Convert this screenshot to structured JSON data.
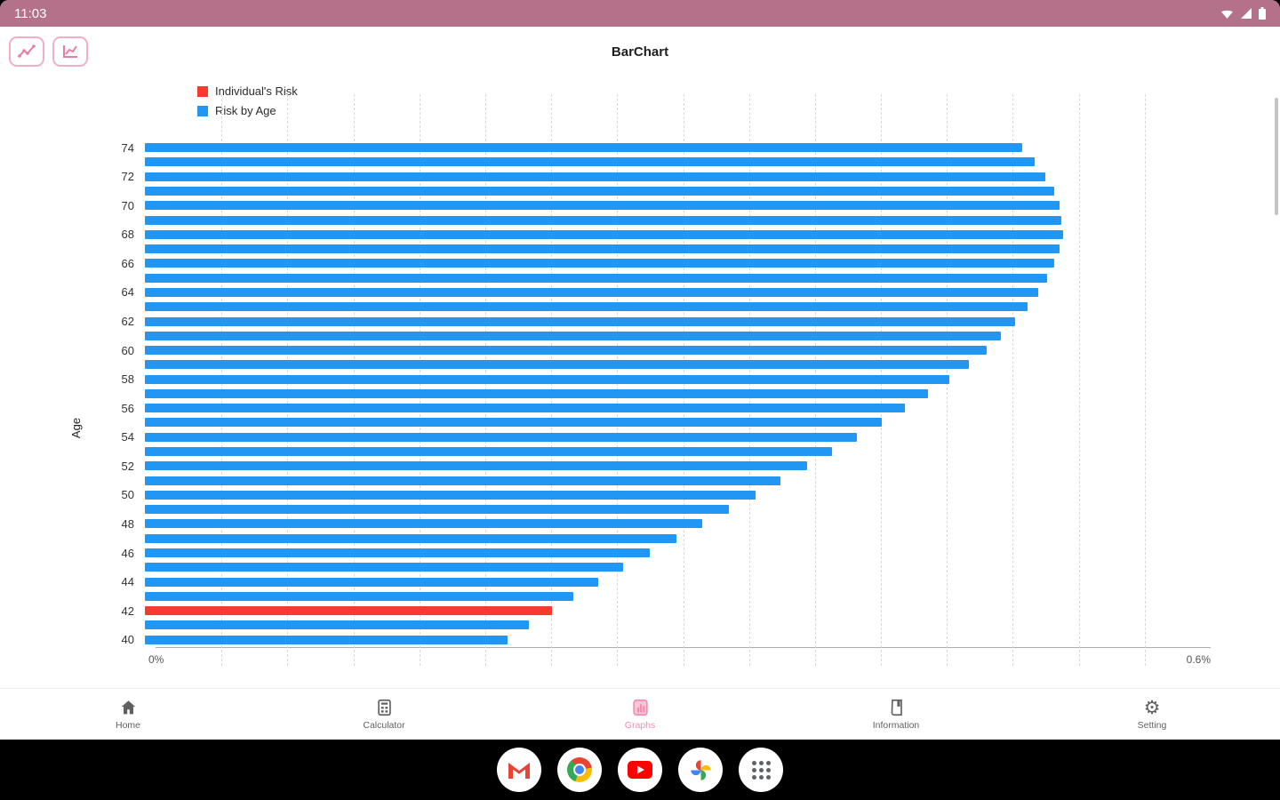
{
  "status_bar": {
    "time": "11:03"
  },
  "app_bar": {
    "title": "BarChart",
    "toolbar_icons": [
      "scatter-chart-icon",
      "line-chart-icon"
    ]
  },
  "chart_data": {
    "type": "bar",
    "orientation": "horizontal",
    "ylabel": "Age",
    "x_axis": {
      "labels": [
        "0%",
        "0.6%"
      ],
      "min": 0,
      "max": 0.6,
      "grid_divisions": 16,
      "grid": true
    },
    "legend": [
      {
        "label": "Individual's Risk",
        "color": "#f43b2d",
        "series": "individual"
      },
      {
        "label": "Risk by Age",
        "color": "#2196f3",
        "series": "risk_by_age"
      }
    ],
    "bars": [
      {
        "age": 74,
        "value": 0.494,
        "series": "risk_by_age"
      },
      {
        "age": 73,
        "value": 0.501,
        "series": "risk_by_age"
      },
      {
        "age": 72,
        "value": 0.507,
        "series": "risk_by_age"
      },
      {
        "age": 71,
        "value": 0.512,
        "series": "risk_by_age"
      },
      {
        "age": 70,
        "value": 0.515,
        "series": "risk_by_age"
      },
      {
        "age": 69,
        "value": 0.516,
        "series": "risk_by_age"
      },
      {
        "age": 68,
        "value": 0.517,
        "series": "risk_by_age"
      },
      {
        "age": 67,
        "value": 0.515,
        "series": "risk_by_age"
      },
      {
        "age": 66,
        "value": 0.512,
        "series": "risk_by_age"
      },
      {
        "age": 65,
        "value": 0.508,
        "series": "risk_by_age"
      },
      {
        "age": 64,
        "value": 0.503,
        "series": "risk_by_age"
      },
      {
        "age": 63,
        "value": 0.497,
        "series": "risk_by_age"
      },
      {
        "age": 62,
        "value": 0.49,
        "series": "risk_by_age"
      },
      {
        "age": 61,
        "value": 0.482,
        "series": "risk_by_age"
      },
      {
        "age": 60,
        "value": 0.474,
        "series": "risk_by_age"
      },
      {
        "age": 59,
        "value": 0.464,
        "series": "risk_by_age"
      },
      {
        "age": 58,
        "value": 0.453,
        "series": "risk_by_age"
      },
      {
        "age": 57,
        "value": 0.441,
        "series": "risk_by_age"
      },
      {
        "age": 56,
        "value": 0.428,
        "series": "risk_by_age"
      },
      {
        "age": 55,
        "value": 0.415,
        "series": "risk_by_age"
      },
      {
        "age": 54,
        "value": 0.401,
        "series": "risk_by_age"
      },
      {
        "age": 53,
        "value": 0.387,
        "series": "risk_by_age"
      },
      {
        "age": 52,
        "value": 0.373,
        "series": "risk_by_age"
      },
      {
        "age": 51,
        "value": 0.358,
        "series": "risk_by_age"
      },
      {
        "age": 50,
        "value": 0.344,
        "series": "risk_by_age"
      },
      {
        "age": 49,
        "value": 0.329,
        "series": "risk_by_age"
      },
      {
        "age": 48,
        "value": 0.314,
        "series": "risk_by_age"
      },
      {
        "age": 47,
        "value": 0.299,
        "series": "risk_by_age"
      },
      {
        "age": 46,
        "value": 0.284,
        "series": "risk_by_age"
      },
      {
        "age": 45,
        "value": 0.269,
        "series": "risk_by_age"
      },
      {
        "age": 44,
        "value": 0.255,
        "series": "risk_by_age"
      },
      {
        "age": 43,
        "value": 0.241,
        "series": "risk_by_age"
      },
      {
        "age": 42,
        "value": 0.229,
        "series": "individual"
      },
      {
        "age": 41,
        "value": 0.216,
        "series": "risk_by_age"
      },
      {
        "age": 40,
        "value": 0.204,
        "series": "risk_by_age"
      }
    ]
  },
  "bottom_nav": {
    "items": [
      {
        "label": "Home",
        "icon": "home-icon",
        "active": false
      },
      {
        "label": "Calculator",
        "icon": "calculator-icon",
        "active": false
      },
      {
        "label": "Graphs",
        "icon": "graphs-icon",
        "active": true
      },
      {
        "label": "Information",
        "icon": "information-icon",
        "active": false
      },
      {
        "label": "Setting",
        "icon": "settings-icon",
        "active": false
      }
    ]
  },
  "dock": {
    "apps": [
      "gmail",
      "chrome",
      "youtube",
      "photos",
      "app-drawer"
    ]
  },
  "colors": {
    "status-bar-bg": "#b3718a",
    "accent-pink": "#ee87ab",
    "nav-active-pink": "#f28cb1",
    "bar-blue": "#2196f3",
    "bar-red": "#f43b2d",
    "nav-gray": "#616161"
  }
}
